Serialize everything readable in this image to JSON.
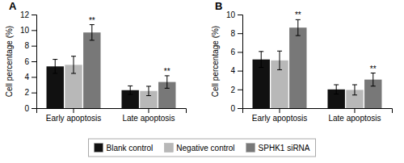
{
  "chart_data": [
    {
      "type": "bar",
      "title": "A",
      "categories": [
        "Early apoptosis",
        "Late apoptosis"
      ],
      "series": [
        {
          "name": "Blank control",
          "color": "#111111",
          "values": [
            5.35,
            2.3
          ],
          "errors": [
            0.9,
            0.55
          ]
        },
        {
          "name": "Negative control",
          "color": "#b8b8b8",
          "values": [
            5.55,
            2.2
          ],
          "errors": [
            1.1,
            0.6
          ]
        },
        {
          "name": "SPHK1 siRNA",
          "color": "#787878",
          "values": [
            9.7,
            3.35
          ],
          "errors": [
            1.0,
            0.8
          ]
        }
      ],
      "annotations": [
        {
          "text": "**",
          "series": "SPHK1 siRNA",
          "category": "Early apoptosis"
        },
        {
          "text": "**",
          "series": "SPHK1 siRNA",
          "category": "Late apoptosis"
        }
      ],
      "ylim": [
        0,
        12
      ],
      "yticks": [
        0,
        2,
        4,
        6,
        8,
        10,
        12
      ],
      "ylabel": "Cell percentage (%)",
      "legend": "bottom"
    },
    {
      "type": "bar",
      "title": "B",
      "categories": [
        "Early apoptosis",
        "Late apoptosis"
      ],
      "series": [
        {
          "name": "Blank control",
          "color": "#111111",
          "values": [
            5.2,
            2.0
          ],
          "errors": [
            0.85,
            0.5
          ]
        },
        {
          "name": "Negative control",
          "color": "#b8b8b8",
          "values": [
            5.1,
            1.95
          ],
          "errors": [
            1.0,
            0.55
          ]
        },
        {
          "name": "SPHK1 siRNA",
          "color": "#787878",
          "values": [
            8.6,
            3.05
          ],
          "errors": [
            0.85,
            0.7
          ]
        }
      ],
      "annotations": [
        {
          "text": "**",
          "series": "SPHK1 siRNA",
          "category": "Early apoptosis"
        },
        {
          "text": "**",
          "series": "SPHK1 siRNA",
          "category": "Late apoptosis"
        }
      ],
      "ylim": [
        0,
        10
      ],
      "yticks": [
        0,
        2,
        4,
        6,
        8,
        10
      ],
      "ylabel": "Cell percentage (%)"
    }
  ]
}
